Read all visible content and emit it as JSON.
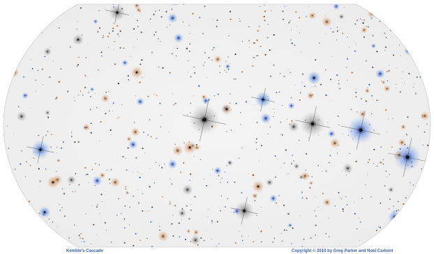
{
  "caption": {
    "title": "Kemble's Cascade",
    "copyright": "Copyright © 2010 by Greg Parker and Noel Carboni"
  }
}
